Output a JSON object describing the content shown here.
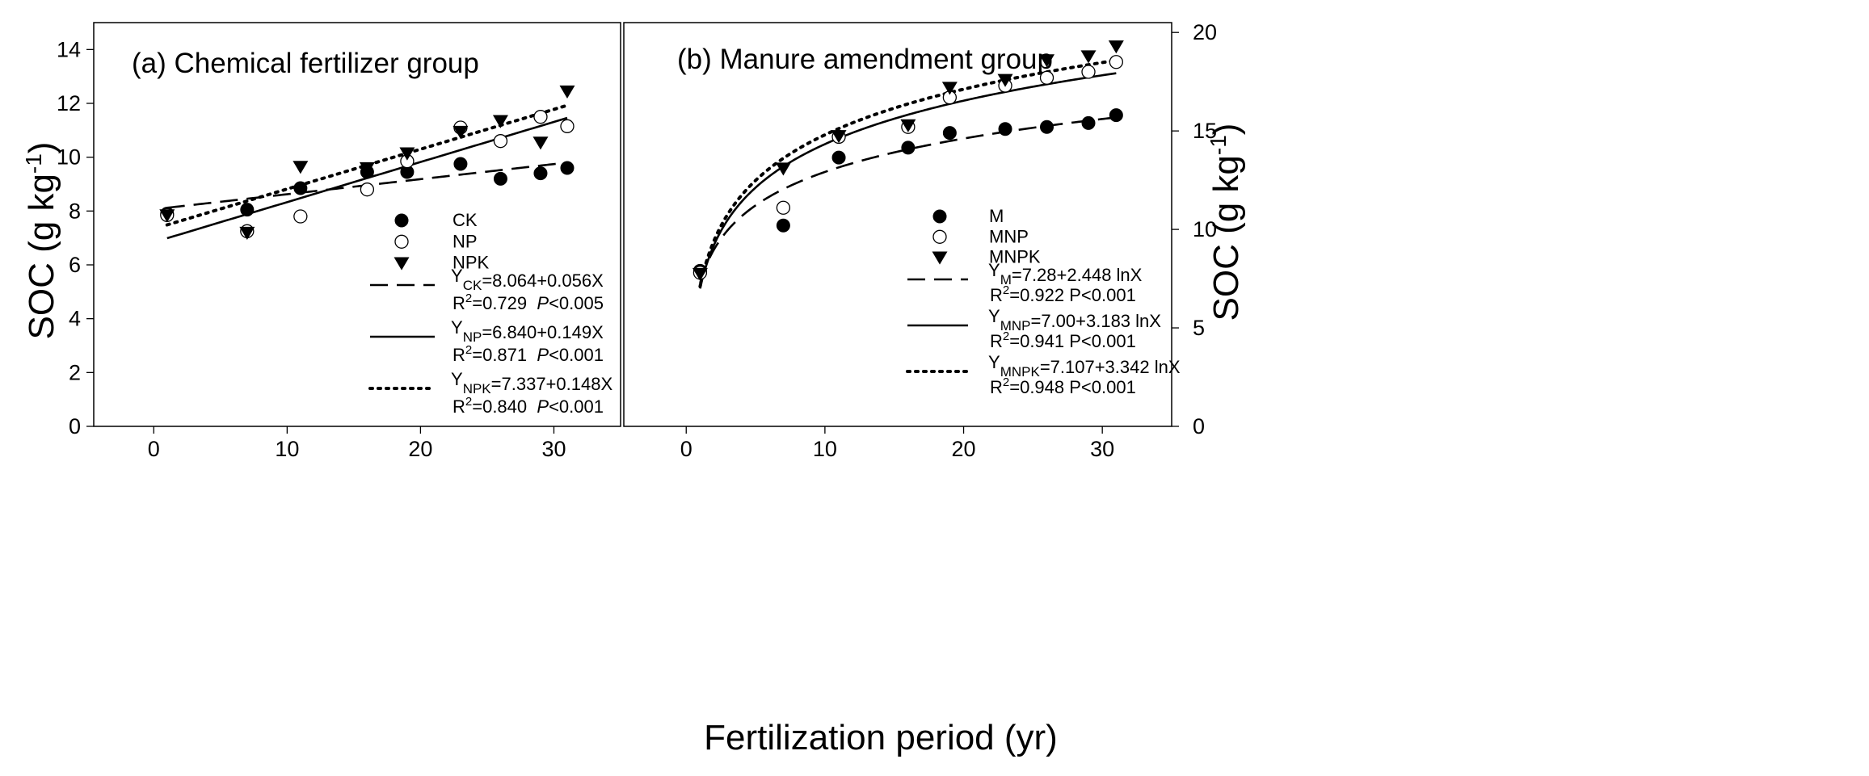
{
  "figure": {
    "xlabel": "Fertilization period (yr)"
  },
  "chart_data": [
    {
      "type": "scatter",
      "panel": "left",
      "title": "(a) Chemical fertilizer group",
      "xlabel": "Fertilization period (yr)",
      "ylabel_main": "SOC (g kg",
      "ylabel_sup": "-1",
      "ylabel_end": ")",
      "xlim": [
        -4.5,
        35
      ],
      "ylim": [
        0,
        15
      ],
      "xticks": [
        0,
        10,
        20,
        30
      ],
      "yticks": [
        0,
        2,
        4,
        6,
        8,
        10,
        12,
        14
      ],
      "grid": false,
      "legend_position": "bottom-right",
      "series": [
        {
          "name": "CK",
          "marker": "filled-circle",
          "x": [
            1,
            7,
            11,
            16,
            19,
            23,
            26,
            29,
            31
          ],
          "y": [
            7.9,
            8.05,
            8.85,
            9.45,
            9.45,
            9.75,
            9.2,
            9.4,
            9.6
          ]
        },
        {
          "name": "NP",
          "marker": "open-circle",
          "x": [
            1,
            7,
            11,
            16,
            19,
            23,
            26,
            29,
            31
          ],
          "y": [
            7.85,
            7.25,
            7.8,
            8.8,
            9.85,
            11.1,
            10.6,
            11.5,
            11.15
          ]
        },
        {
          "name": "NPK",
          "marker": "filled-triangle-down",
          "x": [
            1,
            7,
            11,
            16,
            19,
            23,
            26,
            29,
            31
          ],
          "y": [
            7.85,
            7.2,
            9.65,
            9.6,
            10.15,
            10.95,
            11.35,
            10.55,
            12.45
          ]
        }
      ],
      "fits": [
        {
          "series": "CK",
          "style": "dashed",
          "form": "linear",
          "a": 8.064,
          "b": 0.056,
          "label_y": "Y",
          "label_sub": "CK",
          "label_rest": "=8.064+0.056X",
          "r2_label": "R",
          "r2_sup": "2",
          "r2_value": "=0.729",
          "p_label": "P",
          "p_value": "<0.005"
        },
        {
          "series": "NP",
          "style": "solid",
          "form": "linear",
          "a": 6.84,
          "b": 0.149,
          "label_y": "Y",
          "label_sub": "NP",
          "label_rest": "=6.840+0.149X",
          "r2_label": "R",
          "r2_sup": "2",
          "r2_value": "=0.871",
          "p_label": "P",
          "p_value": "<0.001"
        },
        {
          "series": "NPK",
          "style": "dotted",
          "form": "linear",
          "a": 7.337,
          "b": 0.148,
          "label_y": "Y",
          "label_sub": "NPK",
          "label_rest": "=7.337+0.148X",
          "r2_label": "R",
          "r2_sup": "2",
          "r2_value": "=0.840",
          "p_label": "P",
          "p_value": "<0.001"
        }
      ]
    },
    {
      "type": "scatter",
      "panel": "right",
      "title": "(b) Manure amendment group",
      "xlabel": "Fertilization period (yr)",
      "ylabel_main": "SOC (g kg",
      "ylabel_sup": "-1",
      "ylabel_end": ")",
      "xlim": [
        -4.5,
        35
      ],
      "ylim": [
        0,
        20.5
      ],
      "xticks": [
        0,
        10,
        20,
        30
      ],
      "yticks": [
        0,
        5,
        10,
        15,
        20
      ],
      "grid": false,
      "legend_position": "bottom-right",
      "series": [
        {
          "name": "M",
          "marker": "filled-circle",
          "x": [
            1,
            7,
            11,
            16,
            19,
            23,
            26,
            29,
            31
          ],
          "y": [
            7.9,
            10.2,
            13.65,
            14.15,
            14.9,
            15.1,
            15.2,
            15.4,
            15.8
          ]
        },
        {
          "name": "MNP",
          "marker": "open-circle",
          "x": [
            1,
            7,
            11,
            16,
            19,
            23,
            26,
            29,
            31
          ],
          "y": [
            7.8,
            11.1,
            14.7,
            15.2,
            16.7,
            17.3,
            17.7,
            18.0,
            18.5
          ]
        },
        {
          "name": "MNPK",
          "marker": "filled-triangle-down",
          "x": [
            1,
            7,
            11,
            16,
            19,
            23,
            26,
            29,
            31
          ],
          "y": [
            7.75,
            13.1,
            14.75,
            15.3,
            17.2,
            17.6,
            18.6,
            18.8,
            19.3
          ]
        }
      ],
      "fits": [
        {
          "series": "M",
          "style": "dashed",
          "form": "log",
          "a": 7.28,
          "b": 2.448,
          "label_y": "Y",
          "label_sub": "M",
          "label_rest": "=7.28+2.448 lnX",
          "r2_label": "R",
          "r2_sup": "2",
          "r2_value": "=0.922  P<0.001"
        },
        {
          "series": "MNP",
          "style": "solid",
          "form": "log",
          "a": 7.0,
          "b": 3.183,
          "label_y": "Y",
          "label_sub": "MNP",
          "label_rest": "=7.00+3.183 lnX",
          "r2_label": "R",
          "r2_sup": "2",
          "r2_value": "=0.941  P<0.001"
        },
        {
          "series": "MNPK",
          "style": "dotted",
          "form": "log",
          "a": 7.107,
          "b": 3.342,
          "label_y": "Y",
          "label_sub": "MNPK",
          "label_rest": "=7.107+3.342 lnX",
          "r2_label": "R",
          "r2_sup": "2",
          "r2_value": "=0.948 P<0.001"
        }
      ]
    }
  ]
}
